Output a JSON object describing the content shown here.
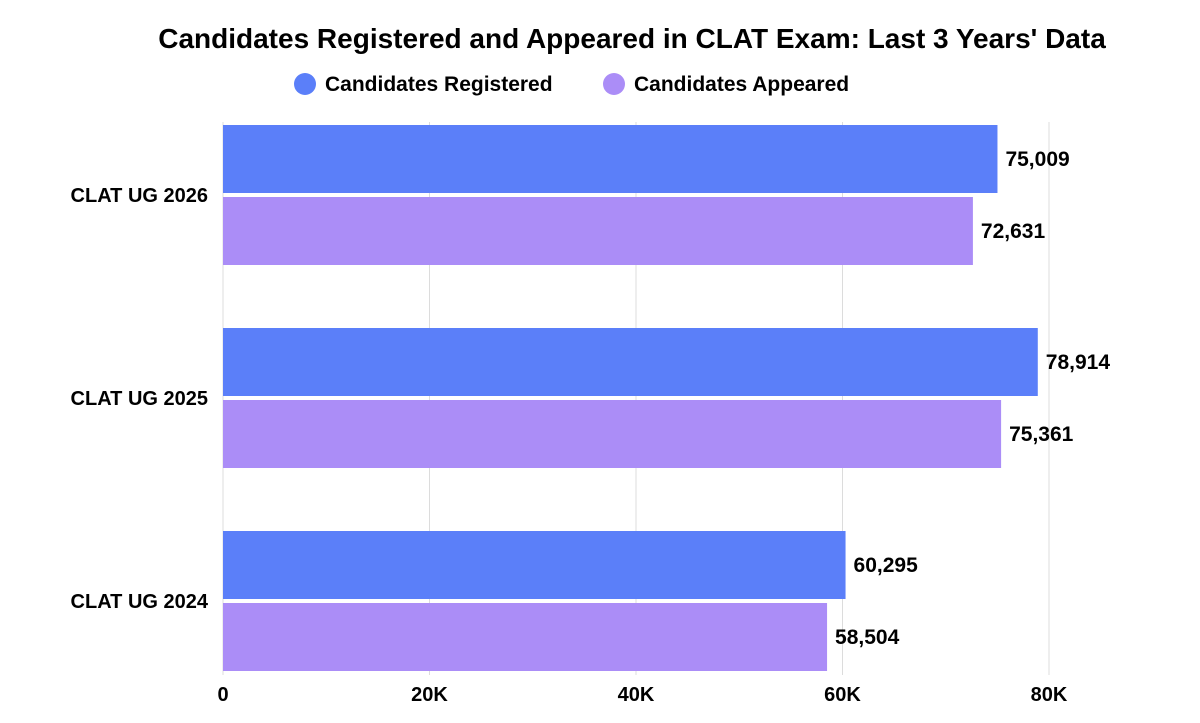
{
  "chart_data": {
    "type": "bar",
    "orientation": "horizontal",
    "title": "Candidates Registered and Appeared in CLAT Exam: Last 3 Years' Data",
    "legend_position": "top-center",
    "categories": [
      "CLAT UG 2026",
      "CLAT UG 2025",
      "CLAT UG 2024"
    ],
    "series": [
      {
        "name": "Candidates Registered",
        "color": "#5b7ff9",
        "values": [
          75009,
          78914,
          60295
        ],
        "labels": [
          "75,009",
          "78,914",
          "60,295"
        ]
      },
      {
        "name": "Candidates Appeared",
        "color": "#ab8df7",
        "values": [
          72631,
          75361,
          58504
        ],
        "labels": [
          "72,631",
          "75,361",
          "58,504"
        ]
      }
    ],
    "xlim": [
      0,
      80000
    ],
    "xticks": [
      0,
      20000,
      40000,
      60000,
      80000
    ],
    "xtick_labels": [
      "0",
      "20K",
      "40K",
      "60K",
      "80K"
    ],
    "grid": true,
    "xlabel": "",
    "ylabel": ""
  }
}
